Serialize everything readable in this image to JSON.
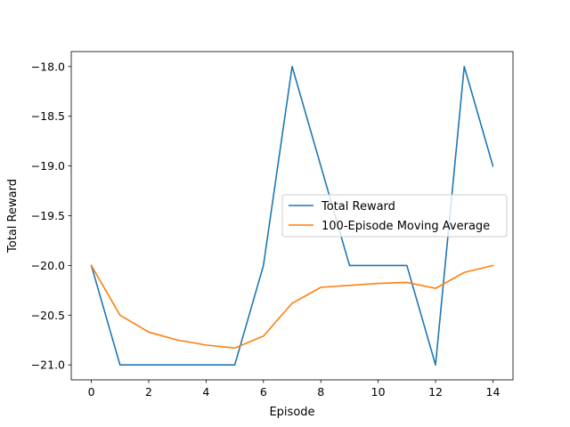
{
  "chart_data": {
    "type": "line",
    "title": "",
    "xlabel": "Episode",
    "ylabel": "Total Reward",
    "x": [
      0,
      1,
      2,
      3,
      4,
      5,
      6,
      7,
      8,
      9,
      10,
      11,
      12,
      13,
      14
    ],
    "xlim": [
      -0.7,
      14.7
    ],
    "ylim": [
      -21.15,
      -17.85
    ],
    "xticks": [
      0,
      2,
      4,
      6,
      8,
      10,
      12,
      14
    ],
    "xtick_labels": [
      "0",
      "2",
      "4",
      "6",
      "8",
      "10",
      "12",
      "14"
    ],
    "yticks": [
      -21.0,
      -20.5,
      -20.0,
      -19.5,
      -19.0,
      -18.5,
      -18.0
    ],
    "ytick_labels": [
      "−21.0",
      "−20.5",
      "−20.0",
      "−19.5",
      "−19.0",
      "−18.5",
      "−18.0"
    ],
    "grid": false,
    "legend_position": "center-right",
    "series": [
      {
        "name": "Total Reward",
        "color": "#1f77b4",
        "values": [
          -20,
          -21,
          -21,
          -21,
          -21,
          -21,
          -20,
          -18,
          -19,
          -20,
          -20,
          -20,
          -21,
          -18,
          -19
        ]
      },
      {
        "name": "100-Episode Moving Average",
        "color": "#ff7f0e",
        "values": [
          -20.0,
          -20.5,
          -20.67,
          -20.75,
          -20.8,
          -20.83,
          -20.71,
          -20.38,
          -20.22,
          -20.2,
          -20.18,
          -20.17,
          -20.23,
          -20.07,
          -20.0
        ]
      }
    ]
  }
}
